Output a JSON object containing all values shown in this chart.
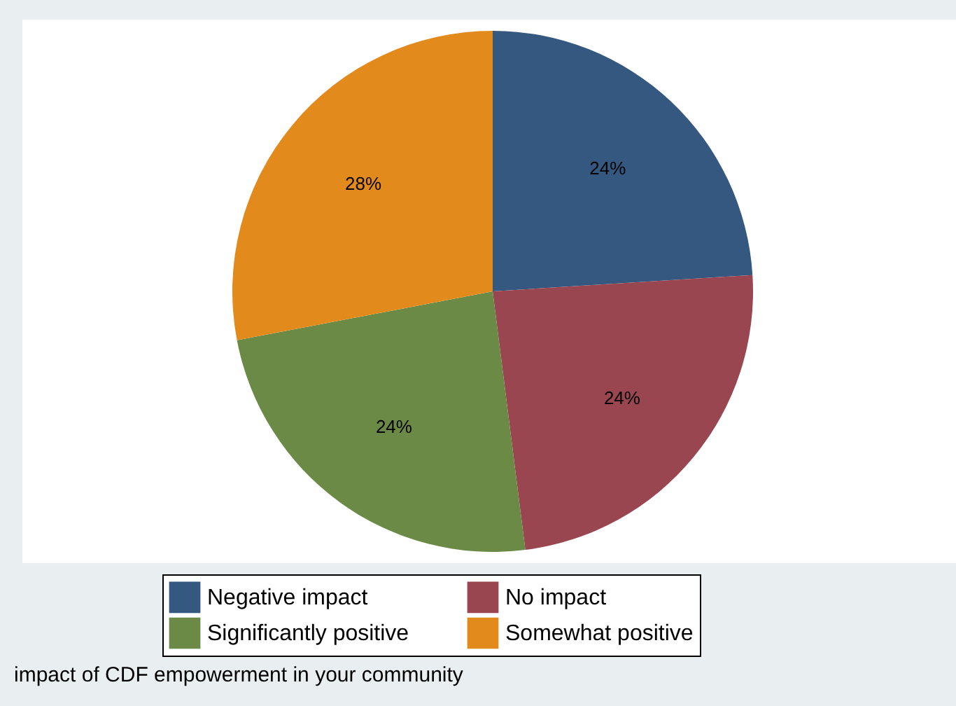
{
  "chart_data": {
    "type": "pie",
    "categories": [
      "Negative impact",
      "No impact",
      "Significantly positive",
      "Somewhat positive"
    ],
    "values": [
      24,
      24,
      24,
      28
    ],
    "colors": [
      "#34587f",
      "#9a4650",
      "#6a8a46",
      "#e38a1c"
    ],
    "value_labels": [
      "24%",
      "24%",
      "24%",
      "28%"
    ],
    "legend": "bottom",
    "annotations": [
      "impact of CDF empowerment in your community"
    ]
  }
}
